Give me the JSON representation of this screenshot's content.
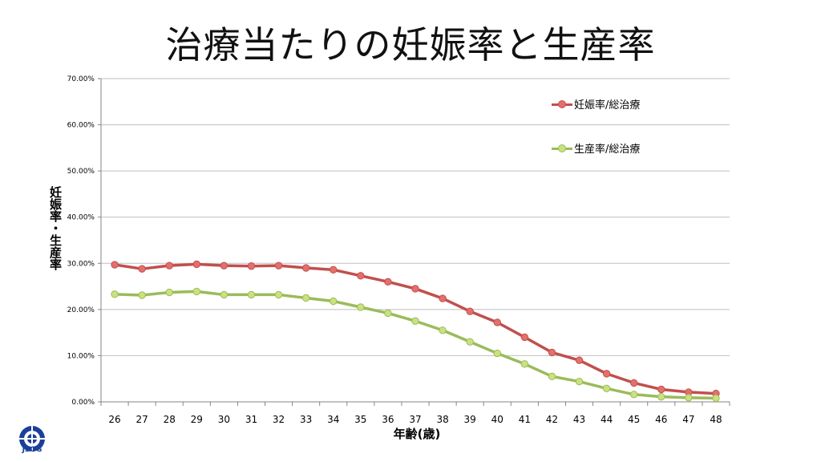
{
  "title": "治療当たりの妊娠率と生産率",
  "chart_data": {
    "type": "line",
    "xlabel": "年齢(歳)",
    "ylabel": "妊娠率・生産率",
    "ylim": [
      0,
      70
    ],
    "y_ticks": [
      "0.00%",
      "10.00%",
      "20.00%",
      "30.00%",
      "40.00%",
      "50.00%",
      "60.00%",
      "70.00%"
    ],
    "grid": true,
    "legend_position": "top-right",
    "categories": [
      "26",
      "27",
      "28",
      "29",
      "30",
      "31",
      "32",
      "33",
      "34",
      "35",
      "36",
      "37",
      "38",
      "39",
      "40",
      "41",
      "42",
      "43",
      "44",
      "45",
      "46",
      "47",
      "48"
    ],
    "series": [
      {
        "name": "妊娠率/総治療",
        "color": "#c0504d",
        "marker_fill": "#e46f6c",
        "values": [
          29.7,
          28.8,
          29.5,
          29.8,
          29.5,
          29.4,
          29.5,
          29.0,
          28.6,
          27.3,
          26.0,
          24.5,
          22.4,
          19.6,
          17.2,
          14.0,
          10.7,
          9.0,
          6.1,
          4.1,
          2.7,
          2.1,
          1.8
        ]
      },
      {
        "name": "生産率/総治療",
        "color": "#9bbb59",
        "marker_fill": "#c9e27f",
        "values": [
          23.3,
          23.1,
          23.7,
          23.9,
          23.2,
          23.2,
          23.2,
          22.5,
          21.8,
          20.5,
          19.2,
          17.5,
          15.5,
          13.0,
          10.5,
          8.2,
          5.5,
          4.4,
          2.9,
          1.6,
          1.1,
          0.9,
          0.8
        ]
      }
    ]
  },
  "logo": {
    "text": "JSOG",
    "color": "#1a3f9c"
  }
}
